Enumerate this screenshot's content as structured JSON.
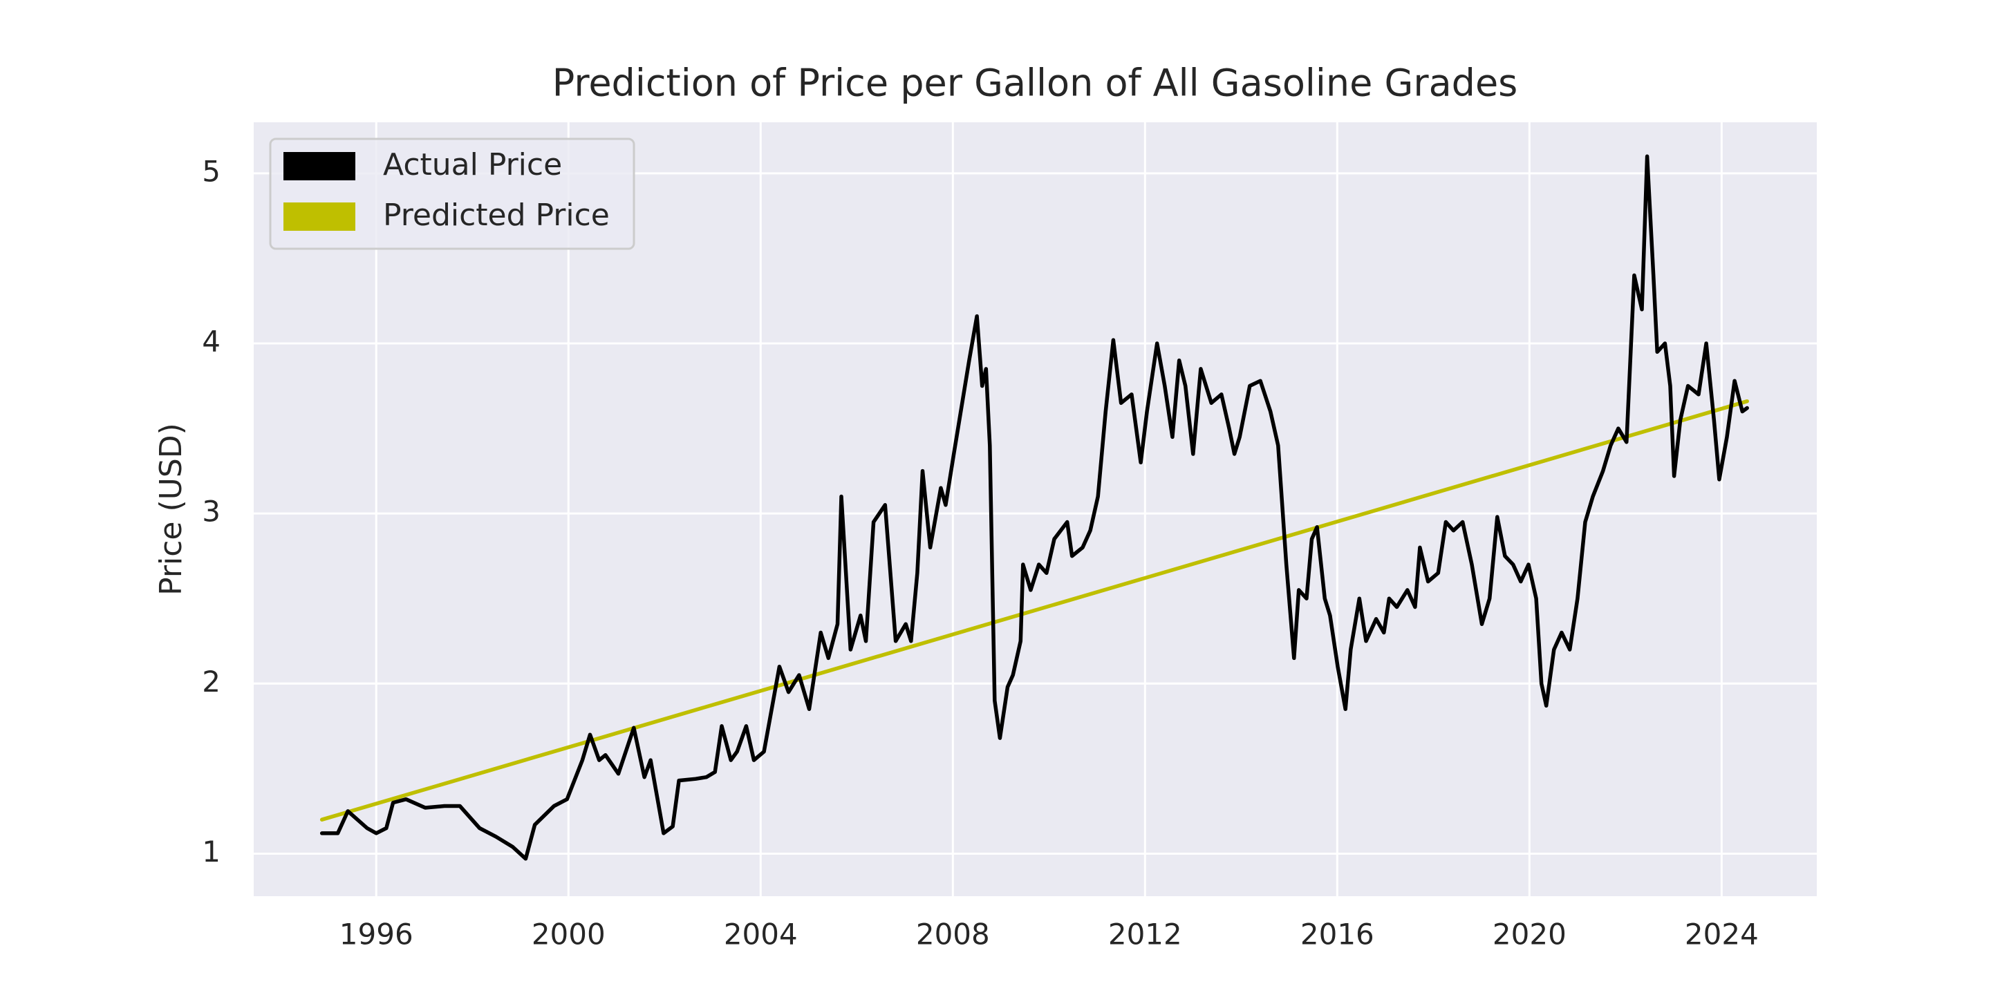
{
  "chart_data": {
    "type": "line",
    "title": "Prediction of Price per Gallon of All Gasoline Grades",
    "ylabel": "Price (USD)",
    "xlim": [
      1993.45,
      2025.98
    ],
    "xticks": [
      1996,
      2000,
      2004,
      2008,
      2012,
      2016,
      2020,
      2024
    ],
    "ylim": [
      0.75,
      5.3
    ],
    "yticks": [
      1,
      2,
      3,
      4,
      5
    ],
    "grid": true,
    "legend": "upper left",
    "series": [
      {
        "name": "Actual Price",
        "color": "#000000",
        "x": [
          1994.87,
          1995.2,
          1995.41,
          1995.81,
          1996.0,
          1996.21,
          1996.35,
          1996.62,
          1997.02,
          1997.42,
          1997.74,
          1998.15,
          1998.49,
          1998.84,
          1999.11,
          1999.3,
          1999.7,
          1999.97,
          2000.29,
          2000.45,
          2000.64,
          2000.77,
          2001.04,
          2001.36,
          2001.58,
          2001.71,
          2001.98,
          2002.17,
          2002.3,
          2002.65,
          2002.87,
          2003.05,
          2003.19,
          2003.38,
          2003.51,
          2003.7,
          2003.86,
          2004.07,
          2004.39,
          2004.58,
          2004.8,
          2005.01,
          2005.25,
          2005.41,
          2005.6,
          2005.68,
          2005.87,
          2006.08,
          2006.19,
          2006.35,
          2006.59,
          2006.81,
          2007.02,
          2007.13,
          2007.26,
          2007.37,
          2007.53,
          2007.75,
          2007.85,
          2008.02,
          2008.34,
          2008.5,
          2008.61,
          2008.69,
          2008.77,
          2008.87,
          2008.98,
          2009.14,
          2009.25,
          2009.41,
          2009.46,
          2009.62,
          2009.79,
          2009.95,
          2010.11,
          2010.38,
          2010.48,
          2010.7,
          2010.86,
          2011.02,
          2011.18,
          2011.34,
          2011.5,
          2011.72,
          2011.91,
          2012.04,
          2012.25,
          2012.41,
          2012.57,
          2012.71,
          2012.84,
          2013.0,
          2013.16,
          2013.38,
          2013.59,
          2013.75,
          2013.86,
          2013.97,
          2014.18,
          2014.4,
          2014.61,
          2014.77,
          2014.94,
          2015.1,
          2015.2,
          2015.36,
          2015.47,
          2015.58,
          2015.74,
          2015.85,
          2016.01,
          2016.17,
          2016.28,
          2016.46,
          2016.6,
          2016.81,
          2016.97,
          2017.08,
          2017.24,
          2017.46,
          2017.62,
          2017.72,
          2017.89,
          2018.1,
          2018.26,
          2018.42,
          2018.61,
          2018.8,
          2019.01,
          2019.17,
          2019.33,
          2019.49,
          2019.66,
          2019.82,
          2019.98,
          2020.14,
          2020.25,
          2020.35,
          2020.51,
          2020.67,
          2020.84,
          2021.0,
          2021.16,
          2021.32,
          2021.53,
          2021.69,
          2021.85,
          2022.02,
          2022.18,
          2022.34,
          2022.45,
          2022.58,
          2022.66,
          2022.82,
          2022.93,
          2023.01,
          2023.14,
          2023.3,
          2023.52,
          2023.68,
          2023.84,
          2023.95,
          2024.11,
          2024.27,
          2024.43,
          2024.53
        ],
        "values": [
          1.12,
          1.12,
          1.25,
          1.15,
          1.12,
          1.15,
          1.3,
          1.32,
          1.27,
          1.28,
          1.28,
          1.15,
          1.1,
          1.04,
          0.97,
          1.17,
          1.28,
          1.32,
          1.55,
          1.7,
          1.55,
          1.58,
          1.47,
          1.74,
          1.45,
          1.55,
          1.12,
          1.16,
          1.43,
          1.44,
          1.45,
          1.48,
          1.75,
          1.55,
          1.6,
          1.75,
          1.55,
          1.6,
          2.1,
          1.95,
          2.05,
          1.85,
          2.3,
          2.15,
          2.35,
          3.1,
          2.2,
          2.4,
          2.25,
          2.95,
          3.05,
          2.25,
          2.35,
          2.25,
          2.65,
          3.25,
          2.8,
          3.15,
          3.05,
          3.35,
          3.9,
          4.16,
          3.75,
          3.85,
          3.4,
          1.9,
          1.68,
          1.98,
          2.05,
          2.25,
          2.7,
          2.55,
          2.7,
          2.65,
          2.85,
          2.95,
          2.75,
          2.8,
          2.9,
          3.1,
          3.6,
          4.02,
          3.65,
          3.7,
          3.3,
          3.6,
          4.0,
          3.75,
          3.45,
          3.9,
          3.75,
          3.35,
          3.85,
          3.65,
          3.7,
          3.5,
          3.35,
          3.45,
          3.75,
          3.78,
          3.6,
          3.4,
          2.7,
          2.15,
          2.55,
          2.5,
          2.85,
          2.92,
          2.5,
          2.4,
          2.1,
          1.85,
          2.2,
          2.5,
          2.25,
          2.38,
          2.3,
          2.5,
          2.45,
          2.55,
          2.45,
          2.8,
          2.6,
          2.65,
          2.95,
          2.9,
          2.95,
          2.7,
          2.35,
          2.5,
          2.98,
          2.75,
          2.7,
          2.6,
          2.7,
          2.5,
          2.0,
          1.87,
          2.2,
          2.3,
          2.2,
          2.5,
          2.95,
          3.1,
          3.25,
          3.4,
          3.5,
          3.42,
          4.4,
          4.2,
          5.1,
          4.4,
          3.95,
          4.0,
          3.75,
          3.22,
          3.55,
          3.75,
          3.7,
          4.0,
          3.55,
          3.2,
          3.45,
          3.78,
          3.6,
          3.62
        ]
      },
      {
        "name": "Predicted Price",
        "color": "#bfbf00",
        "x": [
          1994.87,
          2024.53
        ],
        "values": [
          1.2,
          3.66
        ]
      }
    ]
  }
}
